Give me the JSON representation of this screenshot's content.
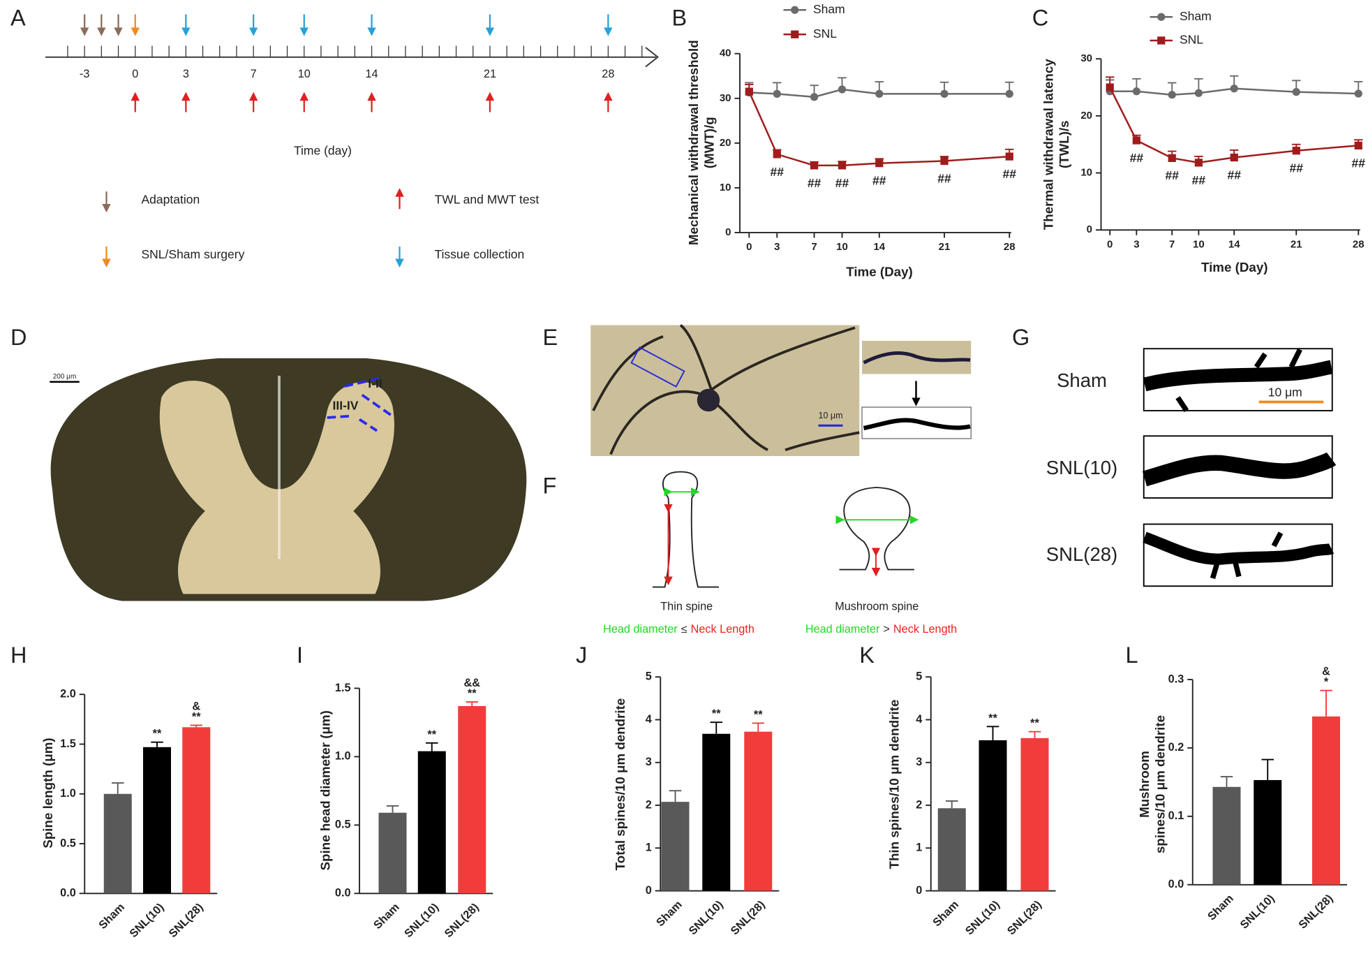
{
  "panel_labels": [
    "A",
    "B",
    "C",
    "D",
    "E",
    "F",
    "G",
    "H",
    "I",
    "J",
    "K",
    "L"
  ],
  "timeline": {
    "days": [
      -3,
      0,
      3,
      7,
      10,
      14,
      21,
      28
    ],
    "axis_label": "Time (day)",
    "legend": [
      "Adaptation",
      "SNL/Sham surgery",
      "TWL and MWT test",
      "Tissue collection"
    ]
  },
  "histology": {
    "scale_bar": "200 μm",
    "laminae": [
      "I-II",
      "III-IV"
    ]
  },
  "golgi": {
    "scale_bar": "10 μm"
  },
  "spine_schematic": {
    "titles": [
      "Thin spine",
      "Mushroom spine"
    ],
    "criteria": [
      [
        "Head diameter",
        "≤",
        "Neck Length"
      ],
      [
        "Head diameter",
        ">",
        "Neck Length"
      ]
    ]
  },
  "dendrites": {
    "groups": [
      "Sham",
      "SNL(10)",
      "SNL(28)"
    ],
    "scale_bar": "10 μm"
  },
  "chart_data": [
    {
      "type": "line",
      "x_label": "Time (Day)",
      "y_label": [
        "Mechanical withdrawal threshold",
        "(MWT)/g"
      ],
      "x": [
        0,
        3,
        7,
        10,
        14,
        21,
        28
      ],
      "xlim": [
        -1,
        28
      ],
      "xticks": [
        0,
        3,
        7,
        10,
        14,
        21,
        28
      ],
      "ylim": [
        0,
        40
      ],
      "yticks": [
        0,
        10,
        20,
        30,
        40
      ],
      "series": [
        {
          "name": "Sham",
          "color": "#6b6b6b",
          "marker": "circle",
          "values": [
            31.3,
            31,
            30.3,
            32,
            31,
            31,
            31
          ],
          "errors": [
            2.2,
            2.5,
            2.6,
            2.6,
            2.7,
            2.6,
            2.6
          ]
        },
        {
          "name": "SNL",
          "color": "#a01c1c",
          "marker": "square",
          "values": [
            31.5,
            17.5,
            15,
            15,
            15.5,
            16,
            17
          ],
          "errors": [
            1.6,
            1,
            0.8,
            0.9,
            1,
            1,
            1.6
          ],
          "annotations": [
            null,
            "##",
            "##",
            "##",
            "##",
            "##",
            "##"
          ]
        }
      ]
    },
    {
      "type": "line",
      "x_label": "Time (Day)",
      "y_label": [
        "Thermal withdrawal latency",
        "(TWL)/s"
      ],
      "x": [
        0,
        3,
        7,
        10,
        14,
        21,
        28
      ],
      "xlim": [
        -1,
        28
      ],
      "xticks": [
        0,
        3,
        7,
        10,
        14,
        21,
        28
      ],
      "ylim": [
        0,
        30
      ],
      "yticks": [
        0,
        10,
        20,
        30
      ],
      "series": [
        {
          "name": "Sham",
          "color": "#6b6b6b",
          "marker": "circle",
          "values": [
            24.3,
            24.3,
            23.7,
            24,
            24.8,
            24.2,
            23.9
          ],
          "errors": [
            2,
            2.2,
            2.1,
            2.5,
            2.2,
            2,
            2.1
          ]
        },
        {
          "name": "SNL",
          "color": "#a01c1c",
          "marker": "square",
          "values": [
            25,
            15.7,
            12.6,
            11.8,
            12.7,
            13.9,
            14.8
          ],
          "errors": [
            1.8,
            0.9,
            1.2,
            1.1,
            1.3,
            1.1,
            1
          ]
        },
        {
          "name": null,
          "color": "#a01c1c",
          "marker": "none",
          "values": [
            null,
            null,
            null,
            null,
            null,
            null,
            null
          ],
          "errors": [
            null,
            null,
            null,
            null,
            null,
            null,
            null
          ],
          "annotations": [
            null,
            "##",
            "##",
            "##",
            "##",
            "##",
            "##"
          ]
        }
      ]
    },
    {
      "type": "bar",
      "y_label": [
        "Spine length (μm)"
      ],
      "categories": [
        "Sham",
        "SNL(10)",
        "SNL(28)"
      ],
      "values": [
        1,
        1.47,
        1.67
      ],
      "errors": [
        0.11,
        0.05,
        0.02
      ],
      "colors": [
        "#595959",
        "#000000",
        "#f23c3c"
      ],
      "ylim": [
        0,
        2
      ],
      "yticks": [
        {
          "value": 0,
          "label": "0.0"
        },
        0.5,
        {
          "value": 1,
          "label": "1.0"
        },
        1.5,
        {
          "value": 2,
          "label": "2.0"
        }
      ],
      "significance": [
        null,
        [
          "**"
        ],
        [
          "**",
          "&"
        ]
      ]
    },
    {
      "type": "bar",
      "y_label": [
        "Spine head diameter (μm)"
      ],
      "categories": [
        "Sham",
        "SNL(10)",
        "SNL(28)"
      ],
      "values": [
        0.59,
        1.04,
        1.37
      ],
      "errors": [
        0.05,
        0.06,
        0.03
      ],
      "colors": [
        "#595959",
        "#000000",
        "#f23c3c"
      ],
      "ylim": [
        0,
        1.5
      ],
      "yticks": [
        {
          "value": 0,
          "label": "0.0"
        },
        0.5,
        {
          "value": 1,
          "label": "1.0"
        },
        1.5
      ],
      "significance": [
        null,
        [
          "**"
        ],
        [
          "**",
          "&&"
        ]
      ]
    },
    {
      "type": "bar",
      "y_label": [
        "Total spines/10 μm dendrite"
      ],
      "categories": [
        "Sham",
        "SNL(10)",
        "SNL(28)"
      ],
      "values": [
        2.08,
        3.67,
        3.72
      ],
      "errors": [
        0.26,
        0.27,
        0.2
      ],
      "colors": [
        "#595959",
        "#000000",
        "#f23c3c"
      ],
      "ylim": [
        0,
        5
      ],
      "yticks": [
        0,
        1,
        2,
        3,
        4,
        5
      ],
      "significance": [
        null,
        [
          "**"
        ],
        [
          "**"
        ]
      ]
    },
    {
      "type": "bar",
      "y_label": [
        "Thin spines/10 μm dendrite"
      ],
      "categories": [
        "Sham",
        "SNL(10)",
        "SNL(28)"
      ],
      "values": [
        1.93,
        3.52,
        3.57
      ],
      "errors": [
        0.17,
        0.32,
        0.15
      ],
      "colors": [
        "#595959",
        "#000000",
        "#f23c3c"
      ],
      "ylim": [
        0,
        5
      ],
      "yticks": [
        0,
        1,
        2,
        3,
        4,
        5
      ],
      "significance": [
        null,
        [
          "**"
        ],
        [
          "**"
        ]
      ]
    },
    {
      "type": "bar",
      "y_label": [
        "Mushroom",
        "spines/10 μm dendrite"
      ],
      "categories": [
        "Sham",
        "SNL(10)",
        "SNL(28)"
      ],
      "values": [
        0.143,
        0.153,
        0.246
      ],
      "errors": [
        0.015,
        0.03,
        0.038
      ],
      "colors": [
        "#595959",
        "#000000",
        "#f23c3c"
      ],
      "ylim": [
        0,
        0.3
      ],
      "yticks": [
        {
          "value": 0,
          "label": "0.0"
        },
        0.1,
        0.2,
        0.3
      ],
      "significance": [
        null,
        null,
        [
          "*",
          "&"
        ]
      ]
    }
  ]
}
